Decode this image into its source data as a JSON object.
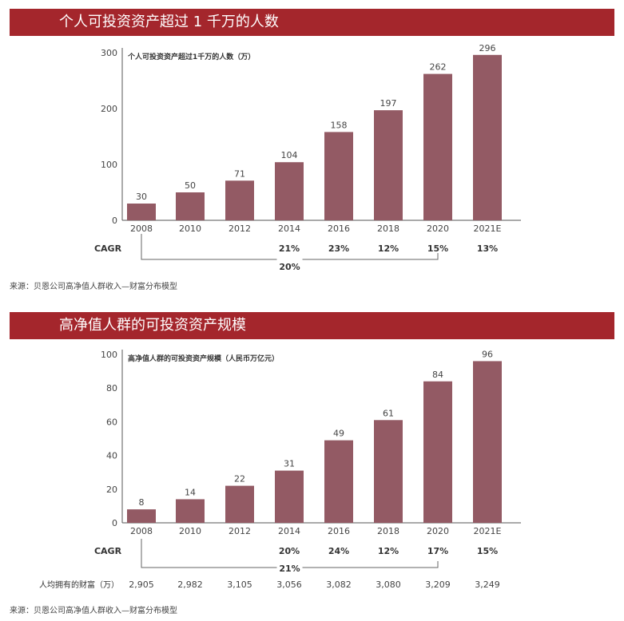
{
  "sections": [
    {
      "banner_title": "个人可投资资产超过 1 千万的人数",
      "source": "来源：贝恩公司高净值人群收入—财富分布模型"
    },
    {
      "banner_title": "高净值人群的可投资资产规模",
      "source": "来源：贝恩公司高净值人群收入—财富分布模型"
    }
  ],
  "colors": {
    "banner": "#a4262c",
    "bar": "#935a64",
    "axis": "#555555"
  },
  "chart_data": [
    {
      "type": "bar",
      "title": "个人可投资资产超过1千万的人数（万）",
      "categories": [
        "2008",
        "2010",
        "2012",
        "2014",
        "2016",
        "2018",
        "2020",
        "2021E"
      ],
      "values": [
        30,
        50,
        71,
        104,
        158,
        197,
        262,
        296
      ],
      "value_labels": [
        "30",
        "50",
        "71",
        "104",
        "158",
        "197",
        "262",
        "296"
      ],
      "ylim": [
        0,
        300
      ],
      "yticks": [
        "0",
        "100",
        "200",
        "300"
      ],
      "cagr_label": "CAGR",
      "cagr_values": [
        "",
        "",
        "",
        "21%",
        "23%",
        "12%",
        "15%",
        "13%"
      ],
      "bracket_label": "20%",
      "bracket_from": "2008",
      "bracket_to": "2020"
    },
    {
      "type": "bar",
      "title": "高净值人群的可投资资产规模（人民币万亿元）",
      "categories": [
        "2008",
        "2010",
        "2012",
        "2014",
        "2016",
        "2018",
        "2020",
        "2021E"
      ],
      "values": [
        8,
        14,
        22,
        31,
        49,
        61,
        84,
        96
      ],
      "value_labels": [
        "8",
        "14",
        "22",
        "31",
        "49",
        "61",
        "84",
        "96"
      ],
      "ylim": [
        0,
        100
      ],
      "yticks": [
        "0",
        "20",
        "40",
        "60",
        "80",
        "100"
      ],
      "cagr_label": "CAGR",
      "cagr_values": [
        "",
        "",
        "",
        "20%",
        "24%",
        "12%",
        "17%",
        "15%"
      ],
      "bracket_label": "21%",
      "bracket_from": "2008",
      "bracket_to": "2020",
      "extra_row_label": "人均拥有的财富（万）",
      "extra_row_values": [
        "2,905",
        "2,982",
        "3,105",
        "3,056",
        "3,082",
        "3,080",
        "3,209",
        "3,249"
      ]
    }
  ]
}
